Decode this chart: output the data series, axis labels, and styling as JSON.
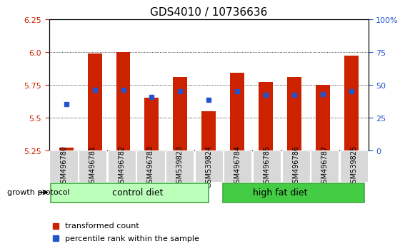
{
  "title": "GDS4010 / 10736636",
  "samples": [
    "GSM496780",
    "GSM496781",
    "GSM496782",
    "GSM496783",
    "GSM539823",
    "GSM539824",
    "GSM496784",
    "GSM496785",
    "GSM496786",
    "GSM496787",
    "GSM539825"
  ],
  "red_bar_tops": [
    5.27,
    5.99,
    6.0,
    5.65,
    5.81,
    5.55,
    5.84,
    5.77,
    5.81,
    5.75,
    5.97
  ],
  "blue_dot_y": [
    5.605,
    5.71,
    5.71,
    5.66,
    5.7,
    5.638,
    5.7,
    5.672,
    5.672,
    5.68,
    5.7
  ],
  "bar_baseline": 5.25,
  "ylim": [
    5.25,
    6.25
  ],
  "yticks": [
    5.25,
    5.5,
    5.75,
    6.0,
    6.25
  ],
  "right_yticks_labels": [
    "0",
    "25",
    "50",
    "75",
    "100%"
  ],
  "right_ytick_pos": [
    5.25,
    5.5,
    5.75,
    6.0,
    6.25
  ],
  "red_color": "#cc2200",
  "blue_color": "#2255cc",
  "bar_width": 0.5,
  "control_diet_count": 6,
  "high_fat_diet_count": 5,
  "control_diet_label": "control diet",
  "high_fat_diet_label": "high fat diet",
  "growth_protocol_label": "growth protocol",
  "legend_red_label": "transformed count",
  "legend_blue_label": "percentile rank within the sample",
  "plot_bg": "#ffffff",
  "control_diet_color": "#bbffbb",
  "high_fat_diet_color": "#44cc44",
  "title_fontsize": 11,
  "tick_fontsize": 8,
  "label_fontsize": 8
}
